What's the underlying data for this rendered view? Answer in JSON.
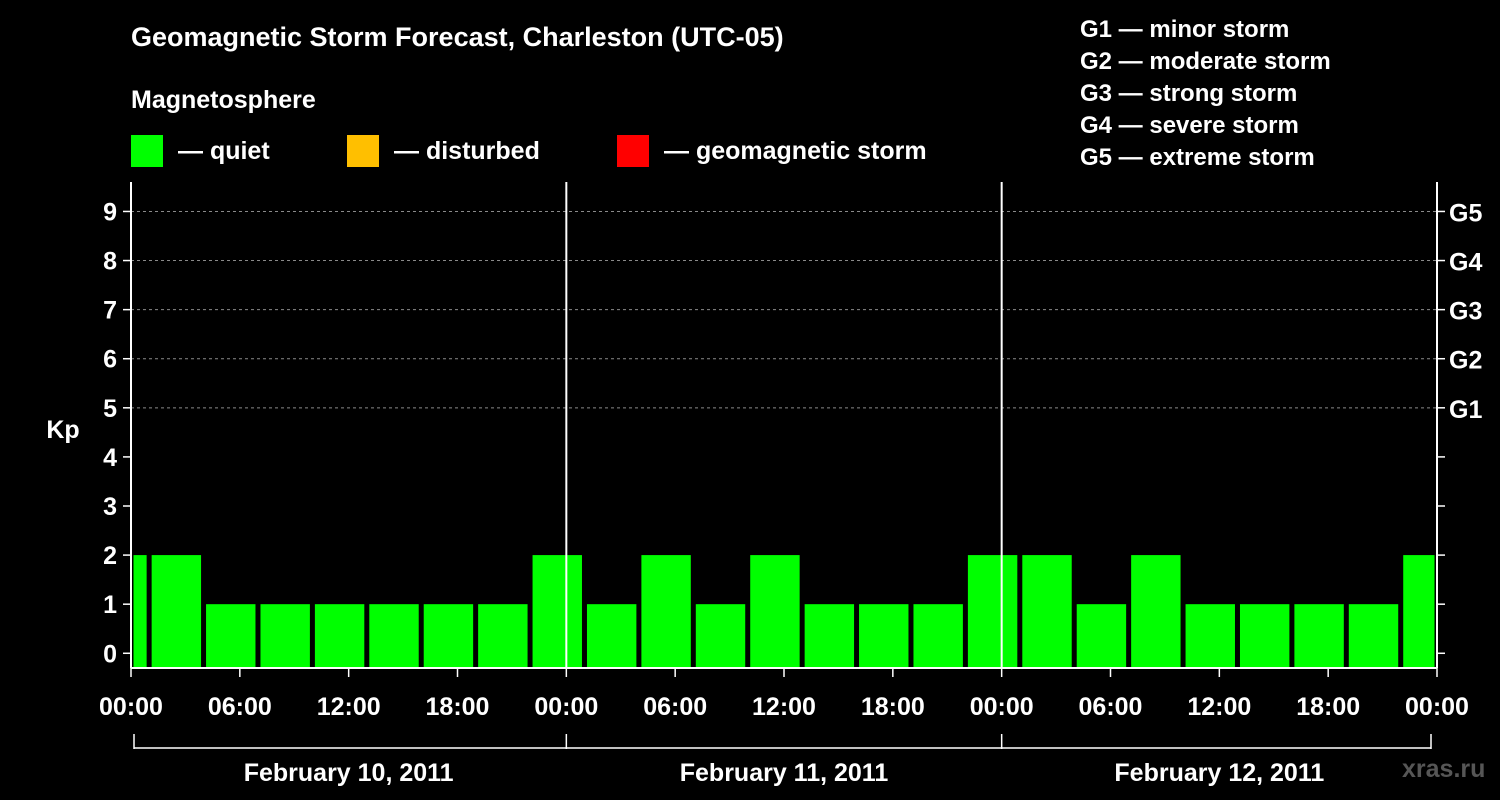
{
  "title": "Geomagnetic Storm Forecast, Charleston (UTC-05)",
  "legend": {
    "heading": "Magnetosphere",
    "items": [
      {
        "label": "— quiet",
        "color": "#00ff00"
      },
      {
        "label": "— disturbed",
        "color": "#ffbf00"
      },
      {
        "label": "— geomagnetic storm",
        "color": "#ff0000"
      }
    ]
  },
  "gscale": [
    "G1 — minor storm",
    "G2 — moderate storm",
    "G3 — strong storm",
    "G4 — severe storm",
    "G5 — extreme storm"
  ],
  "watermark": "xras.ru",
  "chart_data": {
    "type": "bar",
    "title": "Geomagnetic Storm Forecast, Charleston (UTC-05)",
    "ylabel": "Kp",
    "ylim": [
      -0.3,
      9.6
    ],
    "yticks": [
      0,
      1,
      2,
      3,
      4,
      5,
      6,
      7,
      8,
      9
    ],
    "right_axis": [
      {
        "kp": 5,
        "label": "G1"
      },
      {
        "kp": 6,
        "label": "G2"
      },
      {
        "kp": 7,
        "label": "G3"
      },
      {
        "kp": 8,
        "label": "G4"
      },
      {
        "kp": 9,
        "label": "G5"
      }
    ],
    "x_range_hours": [
      0,
      72
    ],
    "x_tick_hours": [
      0,
      6,
      12,
      18,
      24,
      30,
      36,
      42,
      48,
      54,
      60,
      66,
      72
    ],
    "x_tick_labels": [
      "00:00",
      "06:00",
      "12:00",
      "18:00",
      "00:00",
      "06:00",
      "12:00",
      "18:00",
      "00:00",
      "06:00",
      "12:00",
      "18:00",
      "00:00"
    ],
    "day_boundaries_hours": [
      24,
      48
    ],
    "days": [
      {
        "label": "February 10, 2011",
        "start": 0,
        "end": 24
      },
      {
        "label": "February 11, 2011",
        "start": 24,
        "end": 48
      },
      {
        "label": "February 12, 2011",
        "start": 48,
        "end": 72
      }
    ],
    "bars": [
      {
        "start": 0,
        "end": 1,
        "kp": 2,
        "status": "quiet"
      },
      {
        "start": 1,
        "end": 4,
        "kp": 2,
        "status": "quiet"
      },
      {
        "start": 4,
        "end": 7,
        "kp": 1,
        "status": "quiet"
      },
      {
        "start": 7,
        "end": 10,
        "kp": 1,
        "status": "quiet"
      },
      {
        "start": 10,
        "end": 13,
        "kp": 1,
        "status": "quiet"
      },
      {
        "start": 13,
        "end": 16,
        "kp": 1,
        "status": "quiet"
      },
      {
        "start": 16,
        "end": 19,
        "kp": 1,
        "status": "quiet"
      },
      {
        "start": 19,
        "end": 22,
        "kp": 1,
        "status": "quiet"
      },
      {
        "start": 22,
        "end": 25,
        "kp": 2,
        "status": "quiet"
      },
      {
        "start": 25,
        "end": 28,
        "kp": 1,
        "status": "quiet"
      },
      {
        "start": 28,
        "end": 31,
        "kp": 2,
        "status": "quiet"
      },
      {
        "start": 31,
        "end": 34,
        "kp": 1,
        "status": "quiet"
      },
      {
        "start": 34,
        "end": 37,
        "kp": 2,
        "status": "quiet"
      },
      {
        "start": 37,
        "end": 40,
        "kp": 1,
        "status": "quiet"
      },
      {
        "start": 40,
        "end": 43,
        "kp": 1,
        "status": "quiet"
      },
      {
        "start": 43,
        "end": 46,
        "kp": 1,
        "status": "quiet"
      },
      {
        "start": 46,
        "end": 49,
        "kp": 2,
        "status": "quiet"
      },
      {
        "start": 49,
        "end": 52,
        "kp": 2,
        "status": "quiet"
      },
      {
        "start": 52,
        "end": 55,
        "kp": 1,
        "status": "quiet"
      },
      {
        "start": 55,
        "end": 58,
        "kp": 2,
        "status": "quiet"
      },
      {
        "start": 58,
        "end": 61,
        "kp": 1,
        "status": "quiet"
      },
      {
        "start": 61,
        "end": 64,
        "kp": 1,
        "status": "quiet"
      },
      {
        "start": 64,
        "end": 67,
        "kp": 1,
        "status": "quiet"
      },
      {
        "start": 67,
        "end": 70,
        "kp": 1,
        "status": "quiet"
      },
      {
        "start": 70,
        "end": 72,
        "kp": 2,
        "status": "quiet"
      }
    ],
    "status_colors": {
      "quiet": "#00ff00",
      "disturbed": "#ffbf00",
      "storm": "#ff0000"
    }
  }
}
